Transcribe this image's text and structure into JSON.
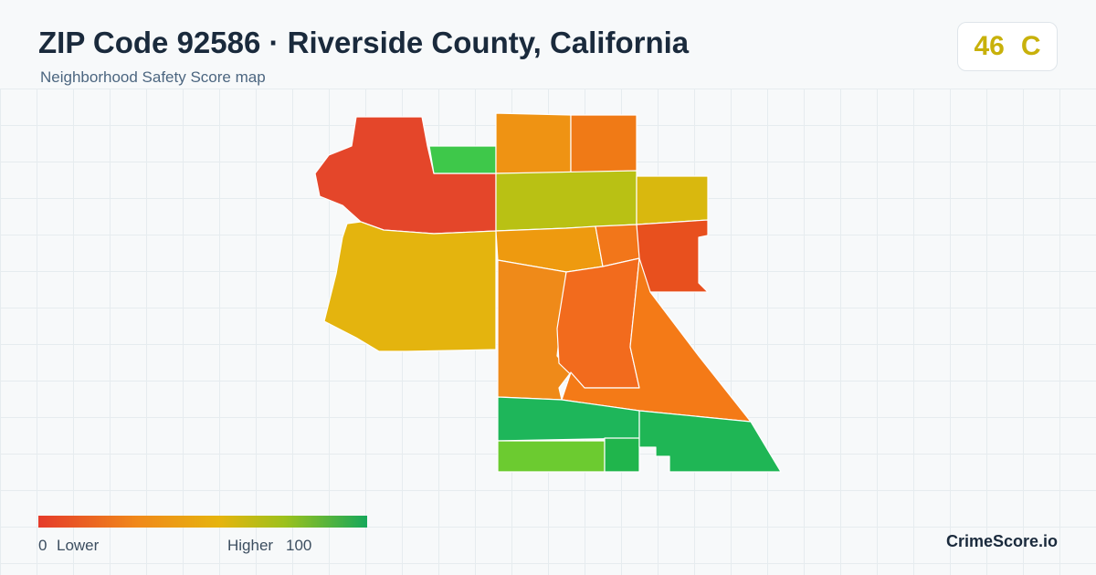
{
  "header": {
    "title": "ZIP Code 92586 · Riverside County, California",
    "subtitle": "Neighborhood Safety Score map"
  },
  "score": {
    "value": 46,
    "grade": "C"
  },
  "legend": {
    "min": 0,
    "min_label": "Lower",
    "max_label": "Higher",
    "max": 100
  },
  "footer": {
    "brand": "CrimeScore.io"
  }
}
